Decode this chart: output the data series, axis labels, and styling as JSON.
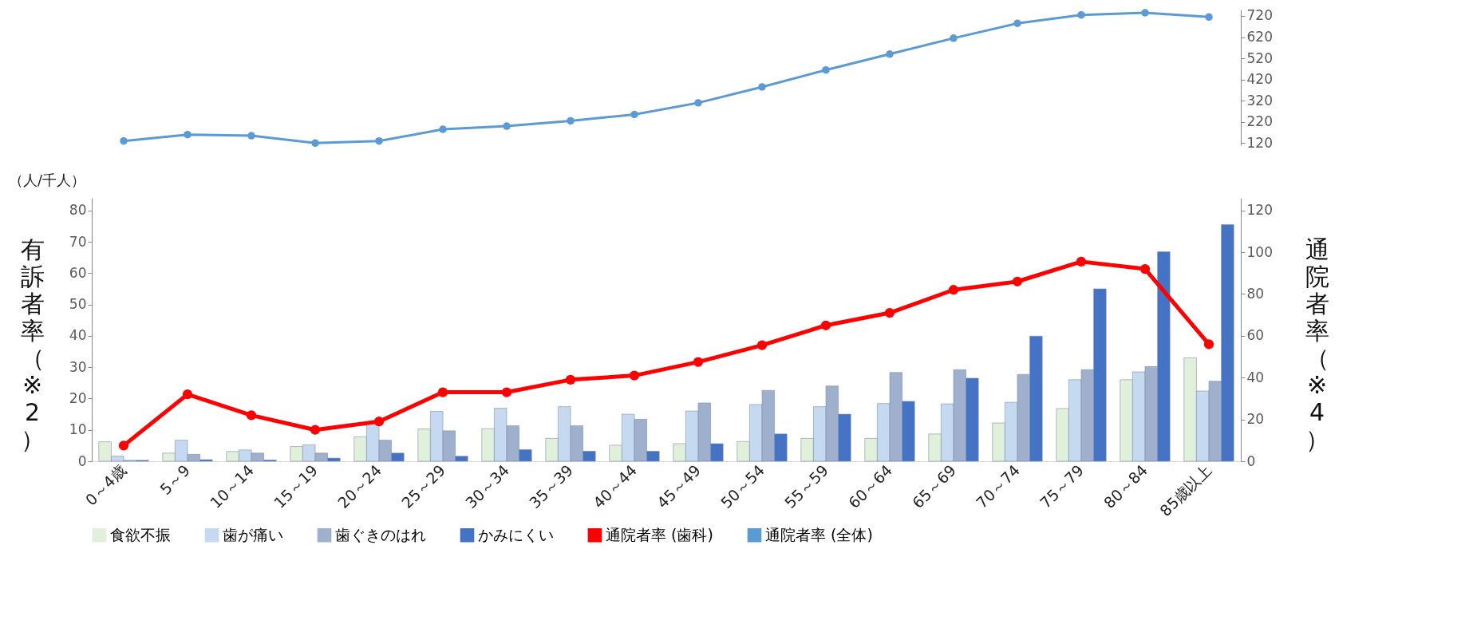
{
  "chart_data": [
    {
      "type": "line",
      "categories": [
        null,
        null,
        null,
        null,
        null,
        null,
        null,
        null,
        null,
        null,
        null,
        null,
        null,
        null,
        null,
        null,
        null,
        null
      ],
      "series": [
        {
          "name": "通院者率 (全体)",
          "color": "#5b9bd5",
          "values": [
            130,
            160,
            155,
            120,
            130,
            185,
            200,
            225,
            255,
            310,
            385,
            465,
            540,
            615,
            685,
            725,
            735,
            715
          ]
        }
      ],
      "ylim": [
        110,
        750
      ],
      "yticks": [
        120,
        220,
        320,
        420,
        520,
        620,
        720
      ],
      "marker": "circle",
      "grid": false
    },
    {
      "type": "bar",
      "categories": [
        "0～4歳",
        "5～9",
        "10～14",
        "15～19",
        "20～24",
        "25～29",
        "30～34",
        "35～39",
        "40～44",
        "45～49",
        "50～54",
        "55～59",
        "60～64",
        "65～69",
        "70～74",
        "75～79",
        "80～84",
        "85歳以上"
      ],
      "series": [
        {
          "name": "食欲不振",
          "color": "#e2efda",
          "values": [
            6.2,
            2.6,
            3.1,
            4.7,
            7.8,
            10.3,
            10.4,
            7.3,
            5.1,
            5.6,
            6.3,
            7.3,
            7.3,
            8.7,
            12.2,
            16.8,
            26,
            33
          ]
        },
        {
          "name": "歯が痛い",
          "color": "#c5d9f1",
          "values": [
            1.6,
            6.7,
            3.6,
            5.2,
            12,
            15.9,
            16.9,
            17.4,
            15,
            16,
            18.1,
            17.4,
            18.4,
            18.3,
            18.8,
            26,
            28.5,
            22.4
          ]
        },
        {
          "name": "歯ぐきのはれ",
          "color": "#9fb0cc",
          "values": [
            0.3,
            2.2,
            2.6,
            2.6,
            6.7,
            9.7,
            11.3,
            11.3,
            13.4,
            18.6,
            22.6,
            24,
            28.3,
            29.2,
            27.7,
            29.2,
            30.2,
            25.5
          ]
        },
        {
          "name": "かみにくい",
          "color": "#4472c4",
          "values": [
            0.3,
            0.5,
            0.4,
            1,
            2.6,
            1.6,
            3.7,
            3.2,
            3.2,
            5.6,
            8.7,
            15,
            19.1,
            26.5,
            39.9,
            55,
            66.8,
            75.5
          ]
        },
        {
          "name": "通院者率 (歯科)",
          "type": "line",
          "axis": "y2",
          "color": "#ff0000",
          "values": [
            7.5,
            32,
            22,
            15,
            19,
            33,
            33,
            39,
            41,
            47.5,
            55.5,
            65,
            71,
            82,
            86,
            95.5,
            92,
            56
          ]
        }
      ],
      "ylim": [
        0,
        84
      ],
      "yticks": [
        0,
        10,
        20,
        30,
        40,
        50,
        60,
        70,
        80
      ],
      "y2lim": [
        0,
        126
      ],
      "y2ticks": [
        0,
        20,
        40,
        60,
        80,
        100,
        120
      ],
      "ylabel": "有訴者率（※2）",
      "y2label": "通院者率（※4）",
      "annotations": [
        "（人/千人）"
      ],
      "legend": "bottom",
      "marker": "circle",
      "grid": false
    }
  ]
}
